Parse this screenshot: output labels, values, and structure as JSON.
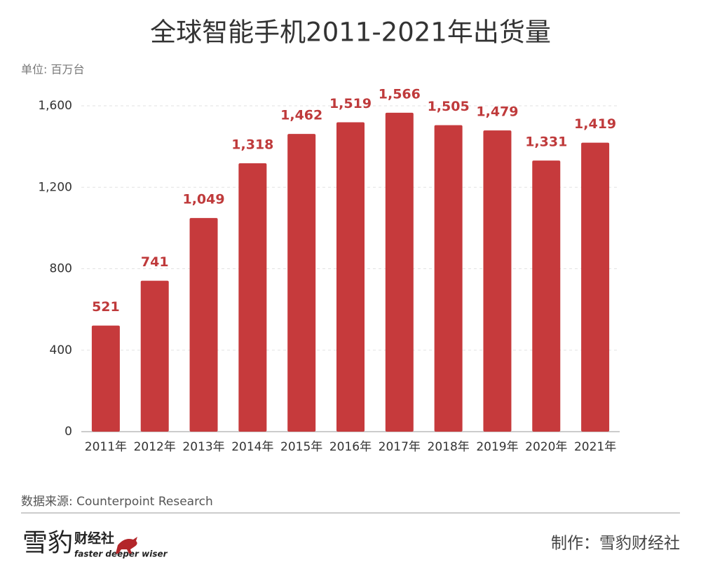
{
  "chart_data": {
    "type": "bar",
    "title": "全球智能手机2011-2021年出货量",
    "subtitle": "单位: 百万台",
    "categories": [
      "2011年",
      "2012年",
      "2013年",
      "2014年",
      "2015年",
      "2016年",
      "2017年",
      "2018年",
      "2019年",
      "2020年",
      "2021年"
    ],
    "values": [
      521,
      741,
      1049,
      1318,
      1462,
      1519,
      1566,
      1505,
      1479,
      1331,
      1419
    ],
    "value_labels": [
      "521",
      "741",
      "1,049",
      "1,318",
      "1,462",
      "1,519",
      "1,566",
      "1,505",
      "1,479",
      "1,331",
      "1,419"
    ],
    "color": "#c63a3c",
    "ylim": [
      0,
      1600
    ],
    "yticks": [
      0,
      400,
      800,
      {
        "value": 1200,
        "label": "1,200"
      },
      {
        "value": 1600,
        "label": "1,600"
      }
    ],
    "grid": true,
    "source": "数据来源: Counterpoint Research",
    "logo_name": "雪豹",
    "logo_suffix": "财经社",
    "logo_tagline": "faster deeper wiser",
    "credit": "制作：雪豹财经社"
  }
}
